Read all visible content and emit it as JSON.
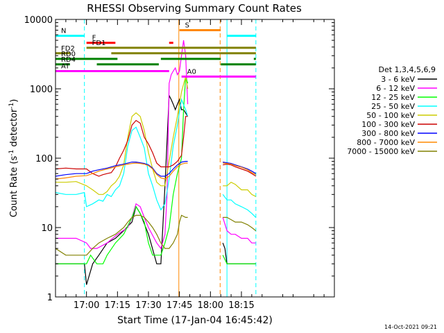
{
  "chart_data": {
    "type": "line",
    "title": "RHESSI Observing Summary Count Rates",
    "xlabel": "Start Time (17-Jan-04 16:45:42)",
    "ylabel_pre": "Count Rate (s",
    "ylabel_sup": "-1",
    "ylabel_mid": " detector",
    "ylabel_post": ")",
    "yscale": "log",
    "ylim": [
      1,
      10000
    ],
    "xlim_minutes": [
      -15,
      120
    ],
    "x_ticks": [
      "17:00",
      "17:15",
      "17:30",
      "17:45",
      "18:00",
      "18:15"
    ],
    "x_tick_minutes": [
      0,
      15,
      30,
      45,
      60,
      75
    ],
    "y_ticks": [
      "1",
      "10",
      "100",
      "1000",
      "10000"
    ],
    "y_tick_values": [
      1,
      10,
      100,
      1000,
      10000
    ],
    "legend_position": "right",
    "legend_title": "Det 1,3,4,5,6,9",
    "series": [
      {
        "name": "3 - 6 keV",
        "color": "#000000",
        "x": [
          -15,
          -2,
          -1,
          0,
          3,
          6,
          10,
          14,
          18,
          22,
          24,
          26,
          30,
          34,
          36,
          38,
          40,
          41,
          42,
          43,
          44,
          45,
          46,
          47,
          49,
          49.5,
          51,
          53,
          56,
          60,
          63,
          65,
          66,
          67,
          68,
          70,
          72,
          75,
          78,
          80,
          82
        ],
        "y": [
          3,
          3,
          3,
          1.5,
          3,
          4,
          6,
          7,
          9,
          12,
          20,
          16,
          8,
          3,
          3,
          40,
          800,
          700,
          600,
          500,
          600,
          700,
          500,
          500,
          400,
          null,
          null,
          null,
          null,
          null,
          null,
          null,
          6,
          5,
          3,
          3,
          3,
          3,
          3,
          3,
          3
        ]
      },
      {
        "name": "6 - 12 keV",
        "color": "#ff00ff",
        "x": [
          -15,
          -10,
          -5,
          0,
          2,
          5,
          10,
          15,
          20,
          22,
          24,
          26,
          28,
          30,
          34,
          36,
          38,
          39,
          40,
          41,
          42,
          43,
          44,
          45,
          46,
          47,
          48,
          49,
          49.5,
          51,
          56,
          60,
          63,
          65,
          66,
          68,
          70,
          72,
          75,
          78,
          80,
          82
        ],
        "y": [
          7,
          7,
          7,
          6,
          5,
          5,
          6,
          8,
          10,
          14,
          22,
          20,
          14,
          10,
          6,
          5,
          8,
          30,
          1200,
          1600,
          1800,
          2000,
          1600,
          1800,
          3000,
          5000,
          3000,
          600,
          null,
          null,
          null,
          null,
          null,
          null,
          14,
          9,
          8,
          8,
          7,
          7,
          6,
          6
        ]
      },
      {
        "name": "12 - 25 keV",
        "color": "#00ff00",
        "x": [
          -15,
          -10,
          -5,
          0,
          2,
          5,
          8,
          10,
          14,
          18,
          22,
          24,
          26,
          28,
          30,
          32,
          34,
          36,
          38,
          40,
          42,
          44,
          46,
          47,
          48,
          49,
          49.5,
          51,
          56,
          60,
          63,
          65,
          66,
          68,
          70,
          72,
          75,
          78,
          80,
          82
        ],
        "y": [
          3,
          3,
          3,
          3,
          4,
          3,
          3,
          4,
          6,
          8,
          14,
          20,
          16,
          12,
          6,
          4,
          4,
          4,
          6,
          10,
          30,
          60,
          100,
          500,
          1500,
          1200,
          null,
          null,
          null,
          null,
          null,
          null,
          4,
          3,
          3,
          3,
          3,
          3,
          3,
          3
        ]
      },
      {
        "name": "25 - 50 keV",
        "color": "#00ffff",
        "x": [
          -15,
          -10,
          -5,
          -1,
          0,
          3,
          6,
          8,
          10,
          12,
          14,
          16,
          18,
          20,
          22,
          24,
          26,
          28,
          30,
          32,
          34,
          36,
          38,
          40,
          42,
          44,
          46,
          48,
          49,
          49.5,
          51,
          56,
          60,
          63,
          65,
          66,
          68,
          70,
          72,
          75,
          78,
          80,
          82
        ],
        "y": [
          32,
          30,
          30,
          32,
          20,
          22,
          25,
          24,
          30,
          28,
          35,
          40,
          60,
          150,
          250,
          280,
          200,
          140,
          60,
          40,
          25,
          18,
          22,
          50,
          150,
          300,
          700,
          500,
          400,
          null,
          null,
          null,
          null,
          null,
          null,
          30,
          25,
          25,
          22,
          20,
          18,
          16,
          14
        ]
      },
      {
        "name": "50 - 100 keV",
        "color": "#cccc00",
        "x": [
          -15,
          -10,
          -5,
          0,
          3,
          6,
          8,
          10,
          12,
          14,
          16,
          18,
          20,
          22,
          24,
          26,
          28,
          30,
          32,
          34,
          36,
          38,
          40,
          42,
          44,
          46,
          48,
          49,
          49.5,
          51,
          56,
          60,
          63,
          65,
          66,
          68,
          70,
          72,
          75,
          78,
          80,
          82
        ],
        "y": [
          45,
          45,
          46,
          40,
          35,
          30,
          30,
          33,
          40,
          45,
          55,
          80,
          200,
          400,
          450,
          400,
          250,
          120,
          70,
          45,
          40,
          40,
          90,
          200,
          400,
          900,
          1500,
          1000,
          null,
          null,
          null,
          null,
          null,
          null,
          40,
          40,
          45,
          42,
          35,
          35,
          30,
          28
        ]
      },
      {
        "name": "100 - 300 keV",
        "color": "#cc0000",
        "x": [
          -15,
          -10,
          -5,
          0,
          3,
          6,
          8,
          10,
          12,
          14,
          16,
          18,
          20,
          22,
          24,
          26,
          28,
          30,
          32,
          34,
          36,
          38,
          40,
          42,
          44,
          46,
          47,
          48,
          49,
          49.5,
          51,
          56,
          60,
          63,
          65,
          66,
          68,
          70,
          72,
          75,
          78,
          80,
          82
        ],
        "y": [
          70,
          72,
          70,
          70,
          60,
          55,
          58,
          60,
          62,
          75,
          100,
          130,
          180,
          300,
          350,
          320,
          200,
          160,
          120,
          85,
          75,
          75,
          75,
          80,
          90,
          110,
          200,
          400,
          400,
          null,
          null,
          null,
          null,
          null,
          null,
          80,
          82,
          80,
          75,
          70,
          65,
          60,
          55
        ]
      },
      {
        "name": "300 - 800 keV",
        "color": "#0000ff",
        "x": [
          -15,
          -10,
          -5,
          0,
          3,
          6,
          10,
          14,
          18,
          20,
          22,
          24,
          26,
          28,
          30,
          32,
          34,
          36,
          38,
          40,
          42,
          44,
          46,
          48,
          49,
          49.5,
          51,
          56,
          60,
          63,
          65,
          66,
          68,
          70,
          72,
          75,
          78,
          80,
          82
        ],
        "y": [
          55,
          58,
          60,
          60,
          65,
          68,
          72,
          78,
          82,
          85,
          88,
          88,
          86,
          84,
          80,
          72,
          60,
          55,
          55,
          60,
          70,
          80,
          88,
          90,
          90,
          null,
          null,
          null,
          null,
          null,
          null,
          88,
          86,
          84,
          80,
          75,
          70,
          65,
          60
        ]
      },
      {
        "name": "800 - 7000 keV",
        "color": "#ff8800",
        "x": [
          -15,
          -10,
          -5,
          0,
          3,
          6,
          10,
          14,
          18,
          20,
          22,
          24,
          26,
          28,
          30,
          32,
          34,
          36,
          38,
          40,
          42,
          44,
          46,
          48,
          49,
          49.5,
          51,
          56,
          60,
          63,
          65,
          66,
          68,
          70,
          72,
          75,
          78,
          80,
          82
        ],
        "y": [
          50,
          52,
          55,
          56,
          60,
          65,
          70,
          75,
          80,
          82,
          84,
          85,
          84,
          82,
          78,
          70,
          58,
          52,
          50,
          55,
          65,
          75,
          82,
          85,
          85,
          null,
          null,
          null,
          null,
          null,
          null,
          85,
          84,
          82,
          78,
          74,
          68,
          62,
          58
        ]
      },
      {
        "name": "7000 - 15000 keV",
        "color": "#808000",
        "x": [
          -15,
          -10,
          -5,
          0,
          3,
          6,
          10,
          14,
          18,
          20,
          22,
          24,
          26,
          28,
          30,
          32,
          34,
          36,
          38,
          40,
          42,
          44,
          45,
          46,
          48,
          49,
          49.5,
          51,
          56,
          60,
          63,
          65,
          66,
          68,
          70,
          72,
          75,
          78,
          80,
          82
        ],
        "y": [
          5,
          4,
          4,
          4,
          5,
          6,
          7,
          8,
          10,
          12,
          14,
          15,
          15,
          14,
          12,
          10,
          8,
          6,
          5,
          5,
          6,
          8,
          12,
          15,
          14,
          14,
          null,
          null,
          null,
          null,
          null,
          null,
          14,
          14,
          13,
          12,
          12,
          11,
          10,
          9
        ]
      }
    ],
    "flag_bars": [
      {
        "label": "N",
        "color": "#00ffff",
        "y": 5800,
        "segments": [
          [
            -15,
            -1
          ],
          [
            68,
            82
          ]
        ]
      },
      {
        "label": "S",
        "color": "#ff8800",
        "y": 7000,
        "segments": [
          [
            45,
            65
          ]
        ]
      },
      {
        "label": "F",
        "color": "#ff0000",
        "y": 4600,
        "segments": [
          [
            0,
            14
          ],
          [
            40,
            42
          ]
        ]
      },
      {
        "label": "FD1",
        "color": "#808000",
        "y": 3900,
        "segments": [
          [
            0,
            82
          ]
        ]
      },
      {
        "label": "FD2",
        "color": "#808000",
        "y": 3250,
        "segments": [
          [
            -15,
            -8
          ],
          [
            12,
            82
          ]
        ]
      },
      {
        "label": "RD0",
        "color": "#008000",
        "y": 2700,
        "segments": [
          [
            -15,
            15
          ],
          [
            36,
            65
          ],
          [
            81,
            82
          ]
        ]
      },
      {
        "label": "RD4",
        "color": "#008000",
        "y": 2250,
        "segments": [
          [
            -15,
            -8
          ],
          [
            5,
            35
          ],
          [
            65,
            82
          ]
        ]
      },
      {
        "label": "AT",
        "color": "#ff00ff",
        "y": 1800,
        "segments": [
          [
            -15,
            40
          ]
        ]
      },
      {
        "label": "A0",
        "color": "#ff00ff",
        "y": 1500,
        "segments": [
          [
            46,
            82
          ]
        ]
      }
    ],
    "vlines": [
      {
        "x": -1,
        "color": "#00ffff",
        "style": "dash"
      },
      {
        "x": 44.7,
        "color": "#ff8800",
        "style": "solid"
      },
      {
        "x": 64.7,
        "color": "#ff8800",
        "style": "dash"
      },
      {
        "x": 68,
        "color": "#00ffff",
        "style": "solid"
      },
      {
        "x": 82,
        "color": "#00ffff",
        "style": "dash"
      }
    ],
    "timestamp": "14-Oct-2021 09:21"
  }
}
